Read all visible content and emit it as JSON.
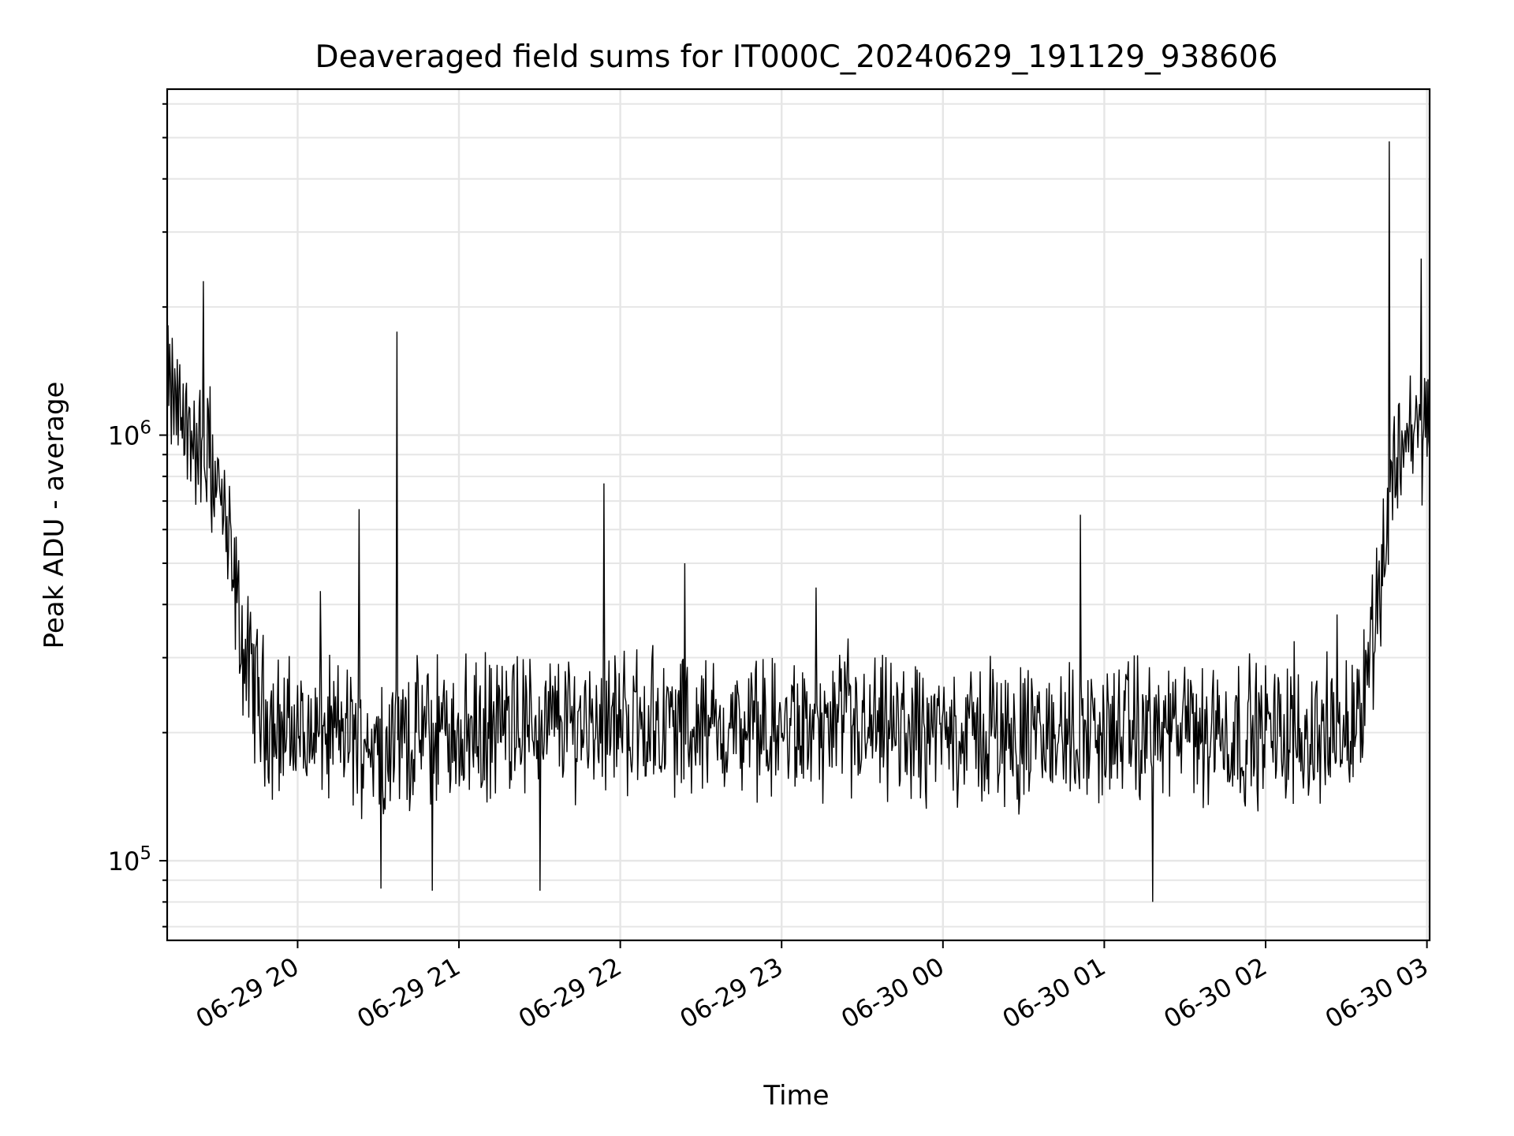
{
  "chart_data": {
    "type": "line",
    "title": "Deaveraged field sums for IT000C_20240629_191129_938606",
    "xlabel": "Time",
    "ylabel": "Peak ADU - average",
    "x_range": [
      "2024-06-29 19:11:29",
      "2024-06-30 03:01:00"
    ],
    "y_scale": "log",
    "ylim": [
      65000,
      6500000
    ],
    "grid": true,
    "x_ticks": [
      {
        "value": "2024-06-29 20:00",
        "label": "06-29 20"
      },
      {
        "value": "2024-06-29 21:00",
        "label": "06-29 21"
      },
      {
        "value": "2024-06-29 22:00",
        "label": "06-29 22"
      },
      {
        "value": "2024-06-29 23:00",
        "label": "06-29 23"
      },
      {
        "value": "2024-06-30 00:00",
        "label": "06-30 00"
      },
      {
        "value": "2024-06-30 01:00",
        "label": "06-30 01"
      },
      {
        "value": "2024-06-30 02:00",
        "label": "06-30 02"
      },
      {
        "value": "2024-06-30 03:00",
        "label": "06-30 03"
      }
    ],
    "y_ticks": [
      {
        "value": 100000,
        "base": "10",
        "exp": "5"
      },
      {
        "value": 1000000,
        "base": "10",
        "exp": "6"
      }
    ],
    "series": [
      {
        "x": [
          "2024-06-29 19:11",
          "2024-06-29 19:20",
          "2024-06-29 19:30",
          "2024-06-29 19:35",
          "2024-06-29 19:38",
          "2024-06-29 19:40",
          "2024-06-29 19:45",
          "2024-06-29 19:50",
          "2024-06-29 20:00",
          "2024-06-29 20:15",
          "2024-06-29 20:30",
          "2024-06-29 20:45",
          "2024-06-29 21:00",
          "2024-06-29 21:30",
          "2024-06-29 22:00",
          "2024-06-29 22:30",
          "2024-06-29 23:00",
          "2024-06-29 23:30",
          "2024-06-30 00:00",
          "2024-06-30 00:30",
          "2024-06-30 01:00",
          "2024-06-30 01:30",
          "2024-06-30 02:00",
          "2024-06-30 02:15",
          "2024-06-30 02:30",
          "2024-06-30 02:35",
          "2024-06-30 02:40",
          "2024-06-30 02:45",
          "2024-06-30 02:50",
          "2024-06-30 03:00"
        ],
        "y": [
          1300000,
          1000000,
          800000,
          500000,
          380000,
          300000,
          250000,
          210000,
          200000,
          200000,
          195000,
          198000,
          200000,
          210000,
          215000,
          205000,
          200000,
          200000,
          200000,
          195000,
          200000,
          200000,
          200000,
          200000,
          200000,
          230000,
          350000,
          600000,
          1000000,
          1050000
        ],
        "spikes": [
          {
            "x": "2024-06-29 19:25",
            "y": 2300000
          },
          {
            "x": "2024-06-29 20:23",
            "y": 670000
          },
          {
            "x": "2024-06-29 20:31",
            "y": 86000
          },
          {
            "x": "2024-06-29 20:37",
            "y": 1750000
          },
          {
            "x": "2024-06-29 20:50",
            "y": 85000
          },
          {
            "x": "2024-06-29 21:30",
            "y": 85000
          },
          {
            "x": "2024-06-29 21:54",
            "y": 770000
          },
          {
            "x": "2024-06-29 22:24",
            "y": 500000
          },
          {
            "x": "2024-06-30 00:51",
            "y": 650000
          },
          {
            "x": "2024-06-30 01:18",
            "y": 80000
          },
          {
            "x": "2024-06-30 02:46",
            "y": 4900000
          },
          {
            "x": "2024-06-30 02:58",
            "y": 2600000
          }
        ]
      }
    ]
  }
}
